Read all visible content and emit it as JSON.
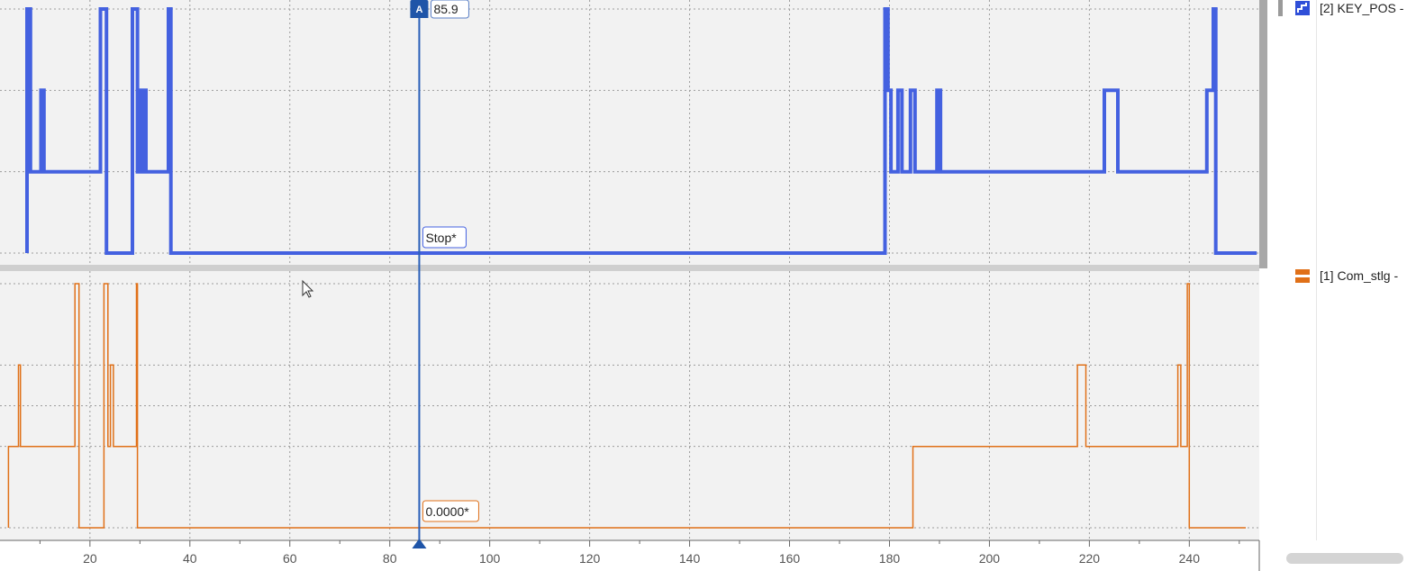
{
  "chart_data": {
    "type": "line",
    "x_ticks": [
      20,
      40,
      60,
      80,
      100,
      120,
      140,
      160,
      180,
      200,
      220,
      240
    ],
    "xlim": [
      2,
      254
    ],
    "cursor": {
      "letter": "A",
      "x": 85.9,
      "x_label": "85.9"
    },
    "series": [
      {
        "name": "[2] KEY_POS -",
        "color": "#4461e0",
        "cursor_value": "Stop*",
        "levels": 4,
        "points": [
          [
            7.4,
            0
          ],
          [
            7.4,
            3
          ],
          [
            8.1,
            3
          ],
          [
            8.1,
            1
          ],
          [
            10.2,
            1
          ],
          [
            10.2,
            2
          ],
          [
            10.8,
            2
          ],
          [
            10.8,
            1
          ],
          [
            22.1,
            1
          ],
          [
            22.1,
            3
          ],
          [
            23.3,
            3
          ],
          [
            23.3,
            0
          ],
          [
            28.5,
            0
          ],
          [
            28.5,
            3
          ],
          [
            29.5,
            3
          ],
          [
            29.5,
            1
          ],
          [
            29.8,
            1
          ],
          [
            29.8,
            2
          ],
          [
            30.3,
            2
          ],
          [
            30.3,
            1
          ],
          [
            30.6,
            1
          ],
          [
            30.6,
            2
          ],
          [
            31.2,
            2
          ],
          [
            31.2,
            1
          ],
          [
            35.7,
            1
          ],
          [
            35.7,
            3
          ],
          [
            36.2,
            3
          ],
          [
            36.2,
            0
          ],
          [
            179.1,
            0
          ],
          [
            179.1,
            3
          ],
          [
            179.7,
            3
          ],
          [
            179.7,
            2
          ],
          [
            180.3,
            2
          ],
          [
            180.3,
            1
          ],
          [
            181.7,
            1
          ],
          [
            181.7,
            2
          ],
          [
            182.5,
            2
          ],
          [
            182.5,
            1
          ],
          [
            184.2,
            1
          ],
          [
            184.2,
            2
          ],
          [
            185.1,
            2
          ],
          [
            185.1,
            1
          ],
          [
            189.5,
            1
          ],
          [
            189.5,
            2
          ],
          [
            190.2,
            2
          ],
          [
            190.2,
            1
          ],
          [
            223.0,
            1
          ],
          [
            223.0,
            2
          ],
          [
            225.7,
            2
          ],
          [
            225.7,
            1
          ],
          [
            243.5,
            1
          ],
          [
            243.5,
            2
          ],
          [
            244.8,
            2
          ],
          [
            244.8,
            3
          ],
          [
            245.3,
            3
          ],
          [
            245.3,
            0
          ],
          [
            253.5,
            0
          ]
        ]
      },
      {
        "name": "[1] Com_stlg -",
        "color": "#e07018",
        "cursor_value": "0.0000*",
        "levels": 4,
        "points": [
          [
            3.7,
            0
          ],
          [
            3.7,
            1
          ],
          [
            5.7,
            1
          ],
          [
            5.7,
            2
          ],
          [
            6.1,
            2
          ],
          [
            6.1,
            1
          ],
          [
            17.0,
            1
          ],
          [
            17.0,
            3
          ],
          [
            17.8,
            3
          ],
          [
            17.8,
            0
          ],
          [
            22.8,
            0
          ],
          [
            22.8,
            3
          ],
          [
            23.6,
            3
          ],
          [
            23.6,
            1
          ],
          [
            24.1,
            1
          ],
          [
            24.1,
            2
          ],
          [
            24.7,
            2
          ],
          [
            24.7,
            1
          ],
          [
            29.3,
            1
          ],
          [
            29.3,
            3
          ],
          [
            29.5,
            3
          ],
          [
            29.5,
            0
          ],
          [
            184.7,
            0
          ],
          [
            184.7,
            1
          ],
          [
            217.6,
            1
          ],
          [
            217.6,
            2
          ],
          [
            219.3,
            2
          ],
          [
            219.3,
            1
          ],
          [
            237.7,
            1
          ],
          [
            237.7,
            2
          ],
          [
            238.3,
            2
          ],
          [
            238.3,
            1
          ],
          [
            239.6,
            1
          ],
          [
            239.6,
            3
          ],
          [
            240.0,
            3
          ],
          [
            240.0,
            0
          ],
          [
            251.3,
            0
          ]
        ]
      }
    ],
    "grid": true
  },
  "legend": {
    "upper": {
      "label": "[2] KEY_POS -",
      "icon": "staircase-signal-icon",
      "color": "#4461e0"
    },
    "lower": {
      "label": "[1] Com_stlg -",
      "icon": "bar-signal-icon",
      "color": "#e07018"
    }
  }
}
